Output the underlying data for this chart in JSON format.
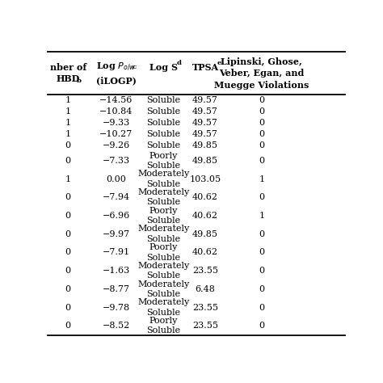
{
  "rows": [
    [
      "1",
      "−14.56",
      "Soluble",
      "49.57",
      "0"
    ],
    [
      "1",
      "−10.84",
      "Soluble",
      "49.57",
      "0"
    ],
    [
      "1",
      "−9.33",
      "Soluble",
      "49.57",
      "0"
    ],
    [
      "1",
      "−10.27",
      "Soluble",
      "49.57",
      "0"
    ],
    [
      "0",
      "−9.26",
      "Soluble",
      "49.85",
      "0"
    ],
    [
      "0",
      "−7.33",
      "Poorly\nSoluble",
      "49.85",
      "0"
    ],
    [
      "1",
      "0.00",
      "Moderately\nSoluble",
      "103.05",
      "1"
    ],
    [
      "0",
      "−7.94",
      "Moderately\nSoluble",
      "40.62",
      "0"
    ],
    [
      "0",
      "−6.96",
      "Poorly\nSoluble",
      "40.62",
      "1"
    ],
    [
      "0",
      "−9.97",
      "Moderately\nSoluble",
      "49.85",
      "0"
    ],
    [
      "0",
      "−7.91",
      "Poorly\nSoluble",
      "40.62",
      "0"
    ],
    [
      "0",
      "−1.63",
      "Moderately\nSoluble",
      "23.55",
      "0"
    ],
    [
      "0",
      "−8.77",
      "Moderately\nSoluble",
      "6.48",
      "0"
    ],
    [
      "0",
      "−9.78",
      "Moderately\nSoluble",
      "23.55",
      "0"
    ],
    [
      "0",
      "−8.52",
      "Poorly\nSoluble",
      "23.55",
      "0"
    ]
  ],
  "col_labels": [
    "nber of\nHBD",
    "Log $P_{o/w}$\n(iLOGP)",
    "Log S",
    "TPSA",
    "Lipinski, Ghose,\nVeber, Egan, and\nMuegge Violations"
  ],
  "col_superscripts": [
    "b",
    "c",
    "d",
    "e",
    ""
  ],
  "bg_color": "#ffffff",
  "text_color": "#000000",
  "header_fontsize": 8.0,
  "cell_fontsize": 8.0,
  "line_color": "#000000"
}
